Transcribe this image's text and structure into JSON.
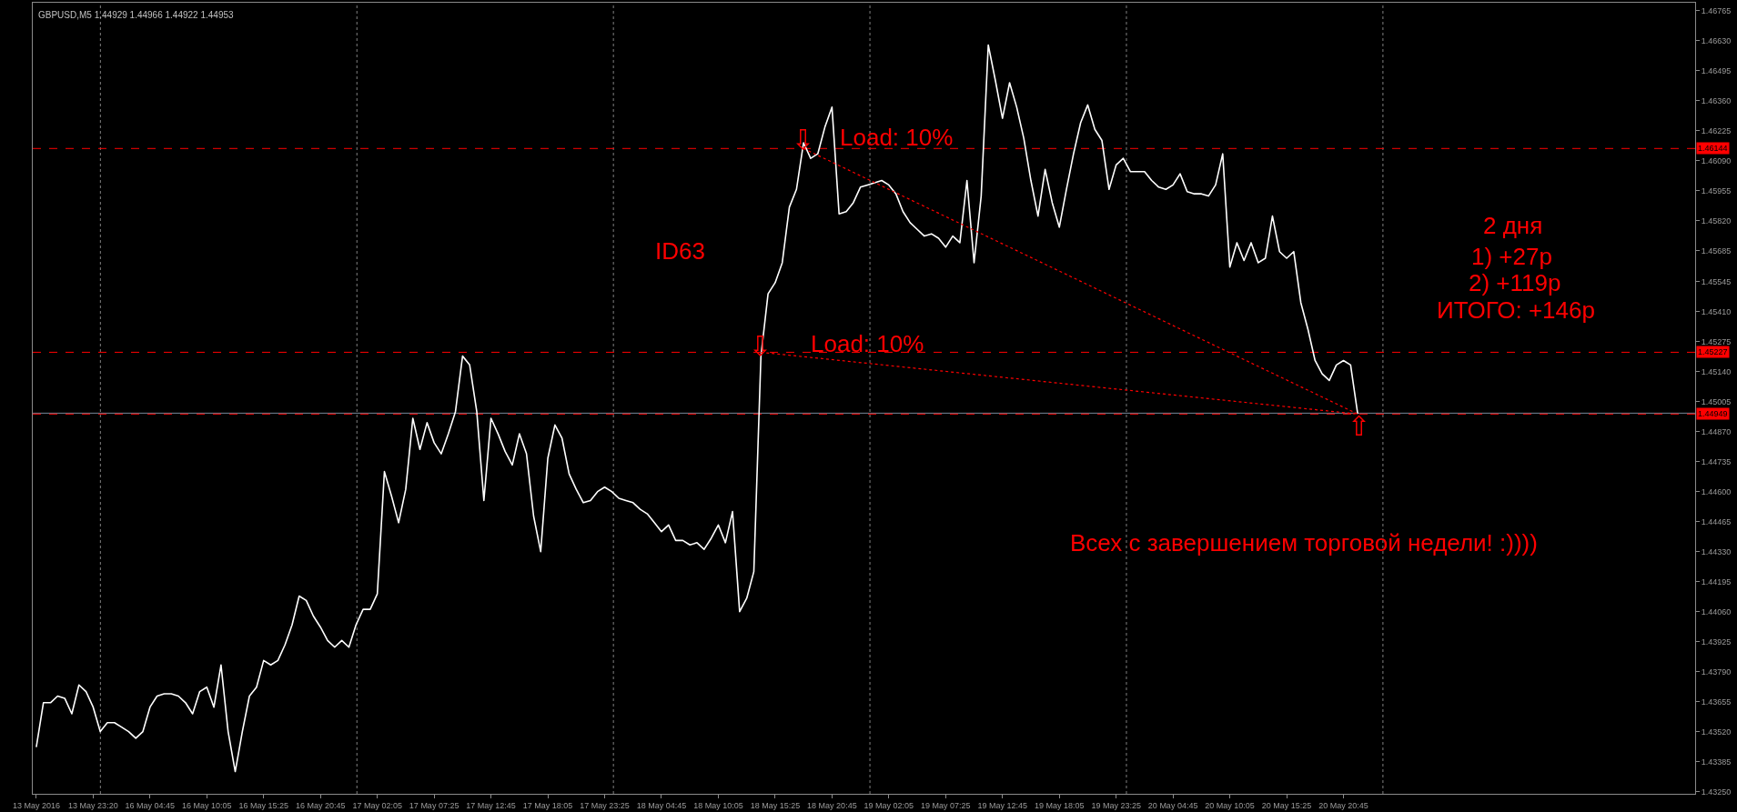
{
  "chart_data": {
    "type": "line",
    "title": "GBPUSD,M5 1.44929 1.44966 1.44922 1.44953",
    "categories": [
      "13 May 2016",
      null,
      null,
      null,
      null,
      null,
      null,
      null,
      "13 May 23:20",
      null,
      null,
      null,
      null,
      null,
      null,
      null,
      "16 May 04:45",
      null,
      null,
      null,
      null,
      null,
      null,
      null,
      "16 May 10:05",
      null,
      null,
      null,
      null,
      null,
      null,
      null,
      "16 May 15:25",
      null,
      null,
      null,
      null,
      null,
      null,
      null,
      "16 May 20:45",
      null,
      null,
      null,
      null,
      null,
      null,
      null,
      "17 May 02:05",
      null,
      null,
      null,
      null,
      null,
      null,
      null,
      "17 May 07:25",
      null,
      null,
      null,
      null,
      null,
      null,
      null,
      "17 May 12:45",
      null,
      null,
      null,
      null,
      null,
      null,
      null,
      "17 May 18:05",
      null,
      null,
      null,
      null,
      null,
      null,
      null,
      "17 May 23:25",
      null,
      null,
      null,
      null,
      null,
      null,
      null,
      "18 May 04:45",
      null,
      null,
      null,
      null,
      null,
      null,
      null,
      "18 May 10:05",
      null,
      null,
      null,
      null,
      null,
      null,
      null,
      "18 May 15:25",
      null,
      null,
      null,
      null,
      null,
      null,
      null,
      "18 May 20:45",
      null,
      null,
      null,
      null,
      null,
      null,
      null,
      "19 May 02:05",
      null,
      null,
      null,
      null,
      null,
      null,
      null,
      "19 May 07:25",
      null,
      null,
      null,
      null,
      null,
      null,
      null,
      "19 May 12:45",
      null,
      null,
      null,
      null,
      null,
      null,
      null,
      "19 May 18:05",
      null,
      null,
      null,
      null,
      null,
      null,
      null,
      "19 May 23:25",
      null,
      null,
      null,
      null,
      null,
      null,
      null,
      "20 May 04:45",
      null,
      null,
      null,
      null,
      null,
      null,
      null,
      "20 May 10:05",
      null,
      null,
      null,
      null,
      null,
      null,
      null,
      "20 May 15:25",
      null,
      null,
      null,
      null,
      null,
      null,
      null,
      "20 May 20:45",
      null,
      null,
      null,
      null,
      null,
      null,
      null,
      null,
      null,
      null,
      null,
      null,
      null,
      null,
      null,
      null,
      null,
      null,
      null,
      null,
      null,
      null,
      null,
      null,
      null,
      null,
      null,
      null,
      null,
      null,
      null,
      null,
      null,
      null,
      null,
      null,
      null,
      null,
      null,
      null,
      null,
      null,
      null,
      null,
      null,
      null,
      null,
      null,
      null
    ],
    "series": [
      {
        "color": "#ffffff",
        "values": [
          1.4345,
          1.4365,
          1.4365,
          1.4368,
          1.4367,
          1.436,
          1.4373,
          1.437,
          1.4363,
          1.4352,
          1.4356,
          1.4356,
          1.4354,
          1.4352,
          1.4349,
          1.4352,
          1.4363,
          1.4368,
          1.4369,
          1.4369,
          1.4368,
          1.4365,
          1.436,
          1.437,
          1.4372,
          1.4363,
          1.4382,
          1.4352,
          1.4334,
          1.4352,
          1.4368,
          1.4372,
          1.4384,
          1.4382,
          1.4384,
          1.4391,
          1.44,
          1.4413,
          1.4411,
          1.4404,
          1.4399,
          1.4393,
          1.439,
          1.4393,
          1.439,
          1.44,
          1.4407,
          1.4407,
          1.4414,
          1.4469,
          1.4458,
          1.4446,
          1.4461,
          1.4493,
          1.4479,
          1.4491,
          1.4482,
          1.4477,
          1.4486,
          1.4496,
          1.4521,
          1.4517,
          1.4496,
          1.4456,
          1.4493,
          1.4486,
          1.4478,
          1.4472,
          1.4486,
          1.4477,
          1.4449,
          1.4433,
          1.4475,
          1.449,
          1.4484,
          1.4468,
          1.4461,
          1.4455,
          1.4456,
          1.446,
          1.4462,
          1.446,
          1.4457,
          1.4456,
          1.4455,
          1.4452,
          1.445,
          1.4446,
          1.4442,
          1.4445,
          1.4438,
          1.4438,
          1.4436,
          1.4437,
          1.4434,
          1.4439,
          1.4445,
          1.4437,
          1.4451,
          1.4406,
          1.4412,
          1.4424,
          1.4521,
          1.4549,
          1.4554,
          1.4563,
          1.4588,
          1.4596,
          1.4617,
          1.461,
          1.4612,
          1.4624,
          1.4633,
          1.4585,
          1.4586,
          1.459,
          1.4597,
          1.4598,
          1.4599,
          1.46,
          1.4598,
          1.4594,
          1.4586,
          1.4581,
          1.4578,
          1.4575,
          1.4576,
          1.4574,
          1.457,
          1.4575,
          1.4572,
          1.46,
          1.4563,
          1.4593,
          1.4661,
          1.4645,
          1.4628,
          1.4644,
          1.4633,
          1.4619,
          1.46,
          1.4584,
          1.4605,
          1.459,
          1.4579,
          1.4596,
          1.4612,
          1.4626,
          1.4634,
          1.4623,
          1.4618,
          1.4596,
          1.4607,
          1.461,
          1.4604,
          1.4604,
          1.4604,
          1.46,
          1.4597,
          1.4596,
          1.4598,
          1.4603,
          1.4595,
          1.4594,
          1.4594,
          1.4593,
          1.4598,
          1.4612,
          1.4561,
          1.4572,
          1.4564,
          1.4572,
          1.4563,
          1.4565,
          1.4584,
          1.4568,
          1.4565,
          1.4568,
          1.4545,
          1.4533,
          1.4519,
          1.4513,
          1.451,
          1.4517,
          1.4519,
          1.4517,
          1.4495,
          null,
          null,
          null,
          null,
          null,
          null,
          null,
          null,
          null,
          null,
          null,
          null,
          null,
          null,
          null,
          null,
          null,
          null,
          null,
          null,
          null,
          null,
          null,
          null,
          null,
          null,
          null,
          null,
          null,
          null,
          null,
          null,
          null,
          null,
          null,
          null,
          null,
          null,
          null,
          null,
          null,
          null,
          null,
          null,
          null,
          null,
          null
        ]
      },
      {
        "type": "line",
        "color": "#ff0000",
        "line_style": "dotted",
        "values": [
          null,
          null,
          null,
          null,
          null,
          null,
          null,
          null,
          null,
          null,
          null,
          null,
          null,
          null,
          null,
          null,
          null,
          null,
          null,
          null,
          null,
          null,
          null,
          null,
          null,
          null,
          null,
          null,
          null,
          null,
          null,
          null,
          null,
          null,
          null,
          null,
          null,
          null,
          null,
          null,
          null,
          null,
          null,
          null,
          null,
          null,
          null,
          null,
          null,
          null,
          null,
          null,
          null,
          null,
          null,
          null,
          null,
          null,
          null,
          null,
          null,
          null,
          null,
          null,
          null,
          null,
          null,
          null,
          null,
          null,
          null,
          null,
          null,
          null,
          null,
          null,
          null,
          null,
          null,
          null,
          null,
          null,
          null,
          null,
          null,
          null,
          null,
          null,
          null,
          null,
          null,
          null,
          null,
          null,
          null,
          null,
          null,
          null,
          null,
          null,
          null,
          null,
          null,
          null,
          null,
          null,
          null,
          null,
          1.46144,
          null,
          null,
          null,
          null,
          null,
          null,
          null,
          null,
          null,
          null,
          null,
          null,
          null,
          null,
          null,
          null,
          null,
          null,
          null,
          null,
          null,
          null,
          null,
          null,
          null,
          null,
          null,
          null,
          null,
          null,
          null,
          null,
          null,
          null,
          null,
          null,
          null,
          null,
          null,
          null,
          null,
          null,
          null,
          null,
          null,
          null,
          null,
          null,
          null,
          null,
          null,
          null,
          null,
          null,
          null,
          null,
          null,
          null,
          null,
          null,
          null,
          null,
          null,
          null,
          null,
          null,
          null,
          null,
          null,
          null,
          null,
          null,
          null,
          null,
          null,
          null,
          null,
          1.44949,
          null,
          null,
          null,
          null,
          null,
          null,
          null,
          null,
          null,
          null,
          null,
          null,
          null,
          null,
          null,
          null,
          null,
          null,
          null,
          null,
          null,
          null,
          null,
          null,
          null,
          null,
          null,
          null,
          null,
          null,
          null,
          null,
          null,
          null,
          null,
          null,
          null,
          null,
          null,
          null,
          null,
          null,
          null,
          null,
          null,
          null,
          null
        ]
      },
      {
        "type": "line",
        "color": "#ff0000",
        "line_style": "dotted",
        "values": [
          null,
          null,
          null,
          null,
          null,
          null,
          null,
          null,
          null,
          null,
          null,
          null,
          null,
          null,
          null,
          null,
          null,
          null,
          null,
          null,
          null,
          null,
          null,
          null,
          null,
          null,
          null,
          null,
          null,
          null,
          null,
          null,
          null,
          null,
          null,
          null,
          null,
          null,
          null,
          null,
          null,
          null,
          null,
          null,
          null,
          null,
          null,
          null,
          null,
          null,
          null,
          null,
          null,
          null,
          null,
          null,
          null,
          null,
          null,
          null,
          null,
          null,
          null,
          null,
          null,
          null,
          null,
          null,
          null,
          null,
          null,
          null,
          null,
          null,
          null,
          null,
          null,
          null,
          null,
          null,
          null,
          null,
          null,
          null,
          null,
          null,
          null,
          null,
          null,
          null,
          null,
          null,
          null,
          null,
          null,
          null,
          null,
          null,
          null,
          null,
          null,
          null,
          1.45227,
          null,
          null,
          null,
          null,
          null,
          null,
          null,
          null,
          null,
          null,
          null,
          null,
          null,
          null,
          null,
          null,
          null,
          null,
          null,
          null,
          null,
          null,
          null,
          null,
          null,
          null,
          null,
          null,
          null,
          null,
          null,
          null,
          null,
          null,
          null,
          null,
          null,
          null,
          null,
          null,
          null,
          null,
          null,
          null,
          null,
          null,
          null,
          null,
          null,
          null,
          null,
          null,
          null,
          null,
          null,
          null,
          null,
          null,
          null,
          null,
          null,
          null,
          null,
          null,
          null,
          null,
          null,
          null,
          null,
          null,
          null,
          null,
          null,
          null,
          null,
          null,
          null,
          null,
          null,
          null,
          null,
          null,
          null,
          1.44949,
          null,
          null,
          null,
          null,
          null,
          null,
          null,
          null,
          null,
          null,
          null,
          null,
          null,
          null,
          null,
          null,
          null,
          null,
          null,
          null,
          null,
          null,
          null,
          null,
          null,
          null,
          null,
          null,
          null,
          null,
          null,
          null,
          null,
          null,
          null,
          null,
          null,
          null,
          null,
          null,
          null,
          null,
          null,
          null,
          null,
          null,
          null
        ]
      }
    ],
    "ylim": [
      1.4324,
      1.468
    ],
    "yticks": [
      {
        "value": 1.4325,
        "label": "1.43250"
      },
      1.43385,
      {
        "value": 1.4352,
        "label": "1.43520"
      },
      1.43655,
      {
        "value": 1.4379,
        "label": "1.43790"
      },
      1.43925,
      {
        "value": 1.4406,
        "label": "1.44060"
      },
      1.44195,
      {
        "value": 1.4433,
        "label": "1.44330"
      },
      1.44465,
      {
        "value": 1.446,
        "label": "1.44600"
      },
      1.44735,
      {
        "value": 1.4487,
        "label": "1.44870"
      },
      1.45005,
      {
        "value": 1.4514,
        "label": "1.45140"
      },
      1.45275,
      {
        "value": 1.4541,
        "label": "1.45410"
      },
      1.45545,
      1.45685,
      {
        "value": 1.4582,
        "label": "1.45820"
      },
      1.45955,
      {
        "value": 1.4609,
        "label": "1.46090"
      },
      1.46225,
      {
        "value": 1.4636,
        "label": "1.46360"
      },
      1.46495,
      {
        "value": 1.4663,
        "label": "1.46630"
      },
      1.46765
    ],
    "ref_lines": [
      {
        "axis": "y",
        "value": 1.46144,
        "label": "1.46144",
        "color": "#ff0000",
        "line_style": "dashed"
      },
      {
        "axis": "y",
        "value": 1.45227,
        "label": "1.45227",
        "color": "#ff0000",
        "line_style": "dashed"
      },
      {
        "axis": "y",
        "value": 1.44953,
        "color": "#778899",
        "line_style": "solid"
      },
      {
        "axis": "y",
        "value": 1.44949,
        "label": "1.44949",
        "color": "#ff0000",
        "line_style": "dashed"
      }
    ],
    "annotations": [
      "ID63",
      "⇩",
      "Load: 10%",
      "⇩",
      "Load: 10%",
      "⇧",
      "2 дня",
      "1) +27р",
      "2) +119р",
      "ИТОГО: +146р",
      "Всех с завершением торговой недели! :))))"
    ]
  }
}
